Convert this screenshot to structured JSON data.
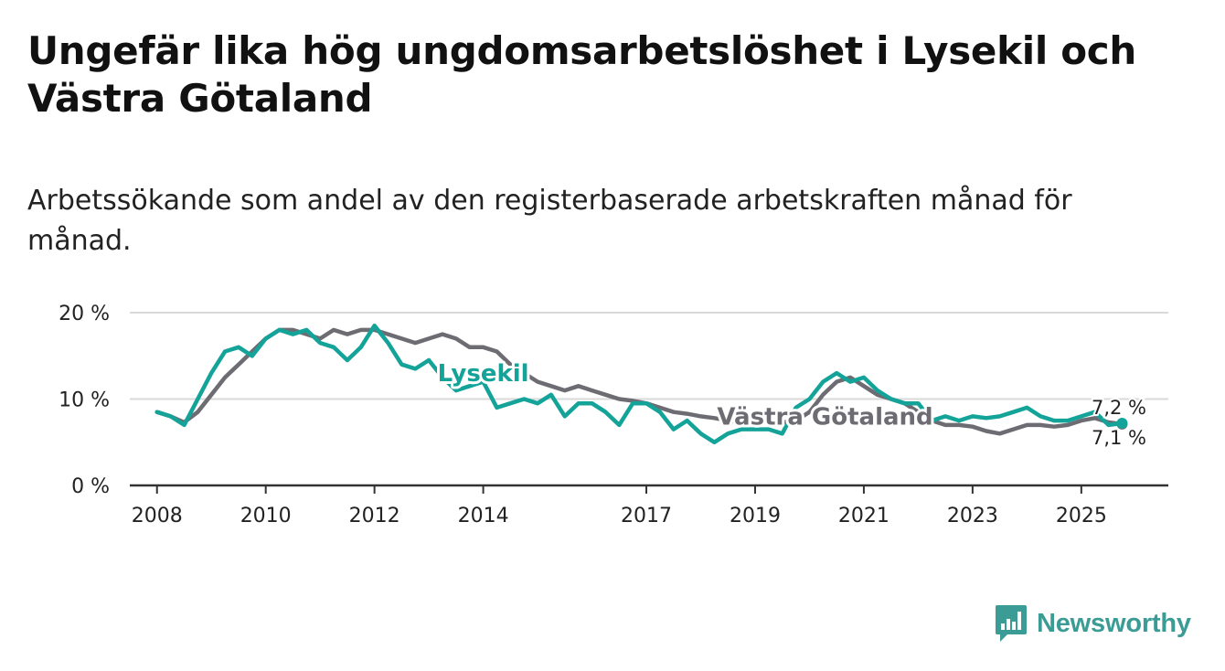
{
  "title": "Ungefär lika hög ungdomsarbetslöshet i Lysekil och Västra Götaland",
  "subtitle": "Arbetssökande som andel av den registerbaserade arbetskraften månad för månad.",
  "brand": {
    "name": "Newsworthy"
  },
  "colors": {
    "lysekil": "#14a399",
    "vastra": "#6e6c73",
    "grid": "#d9d9d9",
    "axis": "#333333",
    "text": "#222222",
    "brand": "#3a9c94"
  },
  "chart_data": {
    "type": "line",
    "title": "Ungefär lika hög ungdomsarbetslöshet i Lysekil och Västra Götaland",
    "xlabel": "",
    "ylabel": "",
    "ylim": [
      0,
      20
    ],
    "xlim": [
      2007.5,
      2026.6
    ],
    "y_ticks": [
      {
        "value": 0,
        "label": "0 %"
      },
      {
        "value": 10,
        "label": "10 %"
      },
      {
        "value": 20,
        "label": "20 %"
      }
    ],
    "x_ticks": [
      {
        "value": 2008,
        "label": "2008"
      },
      {
        "value": 2010,
        "label": "2010"
      },
      {
        "value": 2012,
        "label": "2012"
      },
      {
        "value": 2014,
        "label": "2014"
      },
      {
        "value": 2017,
        "label": "2017"
      },
      {
        "value": 2019,
        "label": "2019"
      },
      {
        "value": 2021,
        "label": "2021"
      },
      {
        "value": 2023,
        "label": "2023"
      },
      {
        "value": 2025,
        "label": "2025"
      }
    ],
    "series": [
      {
        "name": "Västra Götaland",
        "label": "Västra Götaland",
        "key": "vastra",
        "end_label": "7,1 %",
        "points": [
          [
            2008.0,
            8.5
          ],
          [
            2008.25,
            8.0
          ],
          [
            2008.5,
            7.3
          ],
          [
            2008.75,
            8.5
          ],
          [
            2009.0,
            10.5
          ],
          [
            2009.25,
            12.5
          ],
          [
            2009.5,
            14.0
          ],
          [
            2009.75,
            15.5
          ],
          [
            2010.0,
            17.0
          ],
          [
            2010.25,
            18.0
          ],
          [
            2010.5,
            18.0
          ],
          [
            2010.75,
            17.5
          ],
          [
            2011.0,
            17.0
          ],
          [
            2011.25,
            18.0
          ],
          [
            2011.5,
            17.5
          ],
          [
            2011.75,
            18.0
          ],
          [
            2012.0,
            18.0
          ],
          [
            2012.25,
            17.5
          ],
          [
            2012.5,
            17.0
          ],
          [
            2012.75,
            16.5
          ],
          [
            2013.0,
            17.0
          ],
          [
            2013.25,
            17.5
          ],
          [
            2013.5,
            17.0
          ],
          [
            2013.75,
            16.0
          ],
          [
            2014.0,
            16.0
          ],
          [
            2014.25,
            15.5
          ],
          [
            2014.5,
            14.0
          ],
          [
            2014.75,
            13.0
          ],
          [
            2015.0,
            12.0
          ],
          [
            2015.25,
            11.5
          ],
          [
            2015.5,
            11.0
          ],
          [
            2015.75,
            11.5
          ],
          [
            2016.0,
            11.0
          ],
          [
            2016.25,
            10.5
          ],
          [
            2016.5,
            10.0
          ],
          [
            2016.75,
            9.8
          ],
          [
            2017.0,
            9.5
          ],
          [
            2017.25,
            9.0
          ],
          [
            2017.5,
            8.5
          ],
          [
            2017.75,
            8.3
          ],
          [
            2018.0,
            8.0
          ],
          [
            2018.25,
            7.8
          ],
          [
            2018.5,
            7.5
          ],
          [
            2018.75,
            7.3
          ],
          [
            2019.0,
            7.3
          ],
          [
            2019.25,
            7.3
          ],
          [
            2019.5,
            7.3
          ],
          [
            2019.75,
            7.5
          ],
          [
            2020.0,
            8.5
          ],
          [
            2020.25,
            10.5
          ],
          [
            2020.5,
            12.0
          ],
          [
            2020.75,
            12.5
          ],
          [
            2021.0,
            11.5
          ],
          [
            2021.25,
            10.5
          ],
          [
            2021.5,
            10.0
          ],
          [
            2021.75,
            9.5
          ],
          [
            2022.0,
            8.5
          ],
          [
            2022.25,
            7.5
          ],
          [
            2022.5,
            7.0
          ],
          [
            2022.75,
            7.0
          ],
          [
            2023.0,
            6.8
          ],
          [
            2023.25,
            6.3
          ],
          [
            2023.5,
            6.0
          ],
          [
            2023.75,
            6.5
          ],
          [
            2024.0,
            7.0
          ],
          [
            2024.25,
            7.0
          ],
          [
            2024.5,
            6.8
          ],
          [
            2024.75,
            7.0
          ],
          [
            2025.0,
            7.5
          ],
          [
            2025.25,
            7.8
          ],
          [
            2025.5,
            7.3
          ],
          [
            2025.75,
            7.1
          ]
        ]
      },
      {
        "name": "Lysekil",
        "label": "Lysekil",
        "key": "lysekil",
        "end_label": "7,2 %",
        "points": [
          [
            2008.0,
            8.5
          ],
          [
            2008.25,
            8.0
          ],
          [
            2008.5,
            7.0
          ],
          [
            2008.75,
            10.0
          ],
          [
            2009.0,
            13.0
          ],
          [
            2009.25,
            15.5
          ],
          [
            2009.5,
            16.0
          ],
          [
            2009.75,
            15.0
          ],
          [
            2010.0,
            17.0
          ],
          [
            2010.25,
            18.0
          ],
          [
            2010.5,
            17.5
          ],
          [
            2010.75,
            18.0
          ],
          [
            2011.0,
            16.5
          ],
          [
            2011.25,
            16.0
          ],
          [
            2011.5,
            14.5
          ],
          [
            2011.75,
            16.0
          ],
          [
            2012.0,
            18.5
          ],
          [
            2012.25,
            16.5
          ],
          [
            2012.5,
            14.0
          ],
          [
            2012.75,
            13.5
          ],
          [
            2013.0,
            14.5
          ],
          [
            2013.25,
            12.5
          ],
          [
            2013.5,
            11.0
          ],
          [
            2013.75,
            11.5
          ],
          [
            2014.0,
            12.0
          ],
          [
            2014.25,
            9.0
          ],
          [
            2014.5,
            9.5
          ],
          [
            2014.75,
            10.0
          ],
          [
            2015.0,
            9.5
          ],
          [
            2015.25,
            10.5
          ],
          [
            2015.5,
            8.0
          ],
          [
            2015.75,
            9.5
          ],
          [
            2016.0,
            9.5
          ],
          [
            2016.25,
            8.5
          ],
          [
            2016.5,
            7.0
          ],
          [
            2016.75,
            9.5
          ],
          [
            2017.0,
            9.5
          ],
          [
            2017.25,
            8.5
          ],
          [
            2017.5,
            6.5
          ],
          [
            2017.75,
            7.5
          ],
          [
            2018.0,
            6.0
          ],
          [
            2018.25,
            5.0
          ],
          [
            2018.5,
            6.0
          ],
          [
            2018.75,
            6.5
          ],
          [
            2019.0,
            6.5
          ],
          [
            2019.25,
            6.5
          ],
          [
            2019.5,
            6.0
          ],
          [
            2019.75,
            9.0
          ],
          [
            2020.0,
            10.0
          ],
          [
            2020.25,
            12.0
          ],
          [
            2020.5,
            13.0
          ],
          [
            2020.75,
            12.0
          ],
          [
            2021.0,
            12.5
          ],
          [
            2021.25,
            11.0
          ],
          [
            2021.5,
            10.0
          ],
          [
            2021.75,
            9.5
          ],
          [
            2022.0,
            9.5
          ],
          [
            2022.25,
            7.5
          ],
          [
            2022.5,
            8.0
          ],
          [
            2022.75,
            7.5
          ],
          [
            2023.0,
            8.0
          ],
          [
            2023.25,
            7.8
          ],
          [
            2023.5,
            8.0
          ],
          [
            2023.75,
            8.5
          ],
          [
            2024.0,
            9.0
          ],
          [
            2024.25,
            8.0
          ],
          [
            2024.5,
            7.5
          ],
          [
            2024.75,
            7.5
          ],
          [
            2025.0,
            8.0
          ],
          [
            2025.25,
            8.5
          ],
          [
            2025.5,
            7.0
          ],
          [
            2025.75,
            7.2
          ]
        ]
      }
    ]
  }
}
